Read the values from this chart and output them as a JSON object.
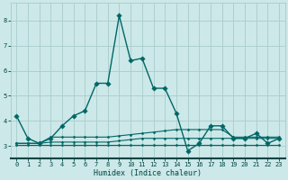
{
  "xlabel": "Humidex (Indice chaleur)",
  "background_color": "#cce8e8",
  "plot_bg_color": "#cce8e8",
  "grid_color": "#aacccc",
  "line_color": "#006666",
  "axis_color": "#004444",
  "xlim": [
    -0.5,
    23.5
  ],
  "ylim": [
    2.5,
    8.7
  ],
  "yticks": [
    3,
    4,
    5,
    6,
    7,
    8
  ],
  "xticks": [
    0,
    1,
    2,
    3,
    4,
    5,
    6,
    7,
    8,
    9,
    10,
    11,
    12,
    13,
    14,
    15,
    16,
    17,
    18,
    19,
    20,
    21,
    22,
    23
  ],
  "series": [
    {
      "x": [
        0,
        1,
        2,
        3,
        4,
        5,
        6,
        7,
        8,
        9,
        10,
        11,
        12,
        13,
        14,
        15,
        16,
        17,
        18,
        19,
        20,
        21,
        22,
        23
      ],
      "y": [
        4.2,
        3.3,
        3.1,
        3.3,
        3.8,
        4.2,
        4.4,
        5.5,
        5.5,
        8.2,
        6.4,
        6.5,
        5.3,
        5.3,
        4.3,
        2.8,
        3.1,
        3.8,
        3.8,
        3.3,
        3.3,
        3.5,
        3.1,
        3.3
      ],
      "lw": 1.0,
      "ms": 2.8
    },
    {
      "x": [
        0,
        1,
        2,
        3,
        4,
        5,
        6,
        7,
        8,
        9,
        10,
        11,
        12,
        13,
        14,
        15,
        16,
        17,
        18,
        19,
        20,
        21,
        22,
        23
      ],
      "y": [
        3.1,
        3.1,
        3.1,
        3.35,
        3.35,
        3.35,
        3.35,
        3.35,
        3.35,
        3.4,
        3.45,
        3.5,
        3.55,
        3.6,
        3.65,
        3.65,
        3.65,
        3.65,
        3.65,
        3.35,
        3.35,
        3.35,
        3.35,
        3.35
      ],
      "lw": 0.8,
      "ms": 1.5
    },
    {
      "x": [
        0,
        1,
        2,
        3,
        4,
        5,
        6,
        7,
        8,
        9,
        10,
        11,
        12,
        13,
        14,
        15,
        16,
        17,
        18,
        19,
        20,
        21,
        22,
        23
      ],
      "y": [
        3.05,
        3.05,
        3.05,
        3.05,
        3.05,
        3.05,
        3.05,
        3.05,
        3.05,
        3.05,
        3.05,
        3.05,
        3.05,
        3.05,
        3.05,
        3.05,
        3.05,
        3.05,
        3.05,
        3.05,
        3.05,
        3.05,
        3.05,
        3.05
      ],
      "lw": 0.8,
      "ms": 1.5
    },
    {
      "x": [
        0,
        1,
        2,
        3,
        4,
        5,
        6,
        7,
        8,
        9,
        10,
        11,
        12,
        13,
        14,
        15,
        16,
        17,
        18,
        19,
        20,
        21,
        22,
        23
      ],
      "y": [
        3.1,
        3.1,
        3.1,
        3.15,
        3.15,
        3.15,
        3.15,
        3.15,
        3.15,
        3.2,
        3.25,
        3.3,
        3.3,
        3.3,
        3.3,
        3.3,
        3.3,
        3.3,
        3.3,
        3.3,
        3.3,
        3.3,
        3.3,
        3.3
      ],
      "lw": 0.8,
      "ms": 1.5
    }
  ]
}
